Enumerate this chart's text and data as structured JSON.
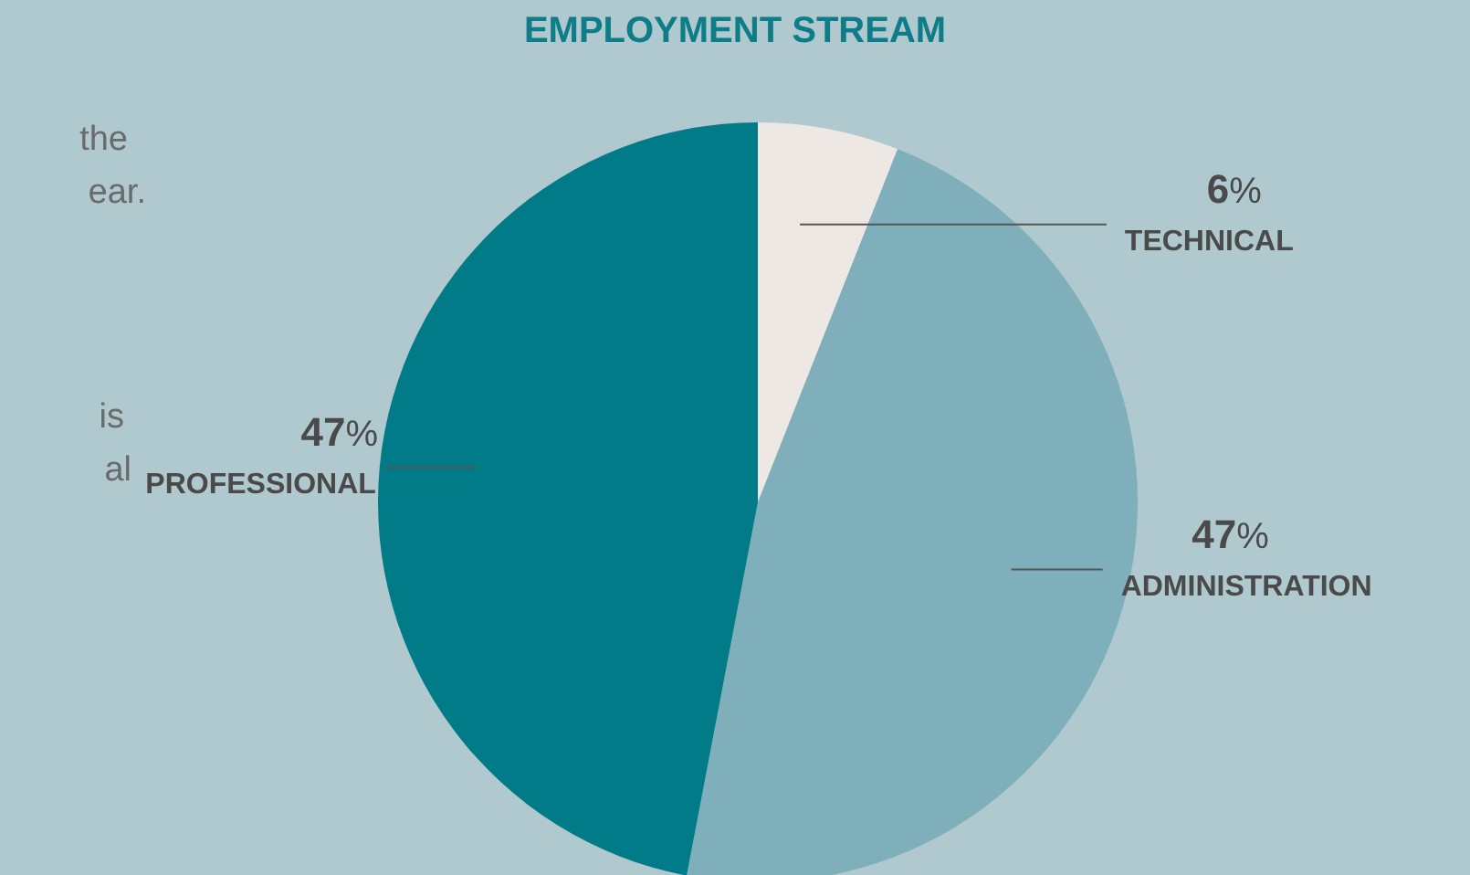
{
  "chart_data": {
    "type": "pie",
    "title": "EMPLOYMENT STREAM",
    "categories": [
      "TECHNICAL",
      "ADMINISTRATION",
      "PROFESSIONAL"
    ],
    "values": [
      6,
      47,
      47
    ],
    "value_labels": [
      "6%",
      "47%",
      "47%"
    ],
    "colors": [
      "#ede8e4",
      "#7eafba",
      "#017b87"
    ],
    "annotations": [
      "the",
      "ear.",
      "is",
      "al"
    ]
  }
}
